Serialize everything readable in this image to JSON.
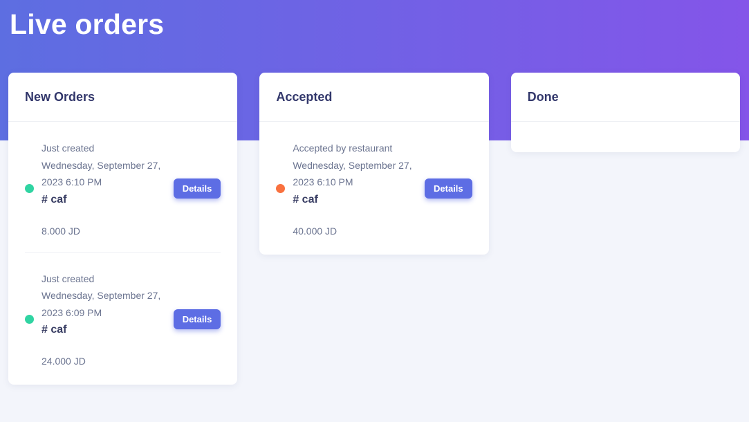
{
  "page": {
    "title": "Live orders"
  },
  "colors": {
    "header_gradient_start": "#5d6ee1",
    "header_gradient_end": "#8455e9",
    "page_background": "#f3f5fb",
    "accent_button": "#5d6de4",
    "new_order_dot": "#30d4a2",
    "accepted_dot": "#f9713f"
  },
  "columns": [
    {
      "title": "New Orders",
      "orders": [
        {
          "status": "Just created",
          "date_lines": [
            "Wednesday, September 27,",
            "2023 6:10 PM"
          ],
          "ref": "# caf",
          "amount": "8.000 JD",
          "details_label": "Details",
          "dot": "green"
        },
        {
          "status": "Just created",
          "date_lines": [
            "Wednesday, September 27,",
            "2023 6:09 PM"
          ],
          "ref": "# caf",
          "amount": "24.000 JD",
          "details_label": "Details",
          "dot": "green"
        }
      ]
    },
    {
      "title": "Accepted",
      "orders": [
        {
          "status": "Accepted by restaurant",
          "date_lines": [
            "Wednesday, September 27,",
            "2023 6:10 PM"
          ],
          "ref": "# caf",
          "amount": "40.000 JD",
          "details_label": "Details",
          "dot": "orange"
        }
      ]
    },
    {
      "title": "Done",
      "orders": []
    }
  ]
}
